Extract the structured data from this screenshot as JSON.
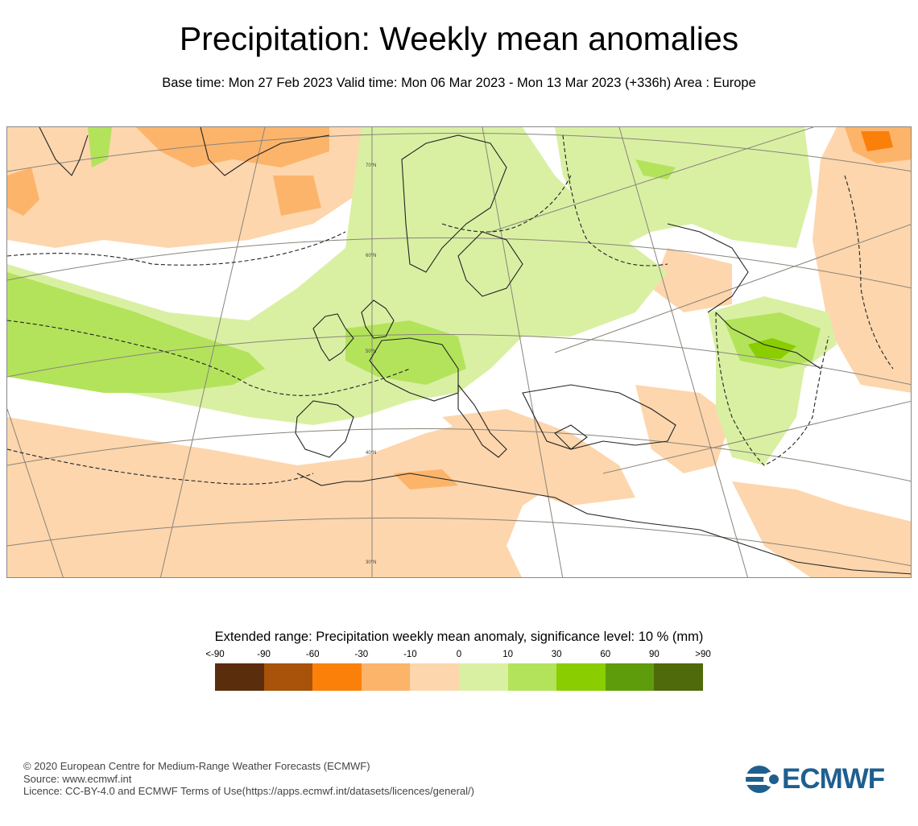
{
  "header": {
    "title": "Precipitation: Weekly mean anomalies",
    "subtitle": "Base time: Mon 27 Feb 2023 Valid time: Mon 06 Mar 2023 - Mon 13 Mar 2023 (+336h) Area : Europe"
  },
  "map": {
    "area": "Europe",
    "latitude_labels": [
      "70°N",
      "60°N",
      "50°N",
      "40°N",
      "30°N"
    ],
    "land_color": "#ffffff",
    "coastline_color": "#222222",
    "gridline_color": "#8a847a",
    "significance_contour": "dashed"
  },
  "legend": {
    "title": "Extended range: Precipitation weekly mean anomaly, significance level: 10 % (mm)",
    "ticks": [
      "<-90",
      "-90",
      "-60",
      "-30",
      "-10",
      "0",
      "10",
      "30",
      "60",
      "90",
      ">90"
    ],
    "colors": [
      "#5a2d0c",
      "#a8520a",
      "#fb8009",
      "#fcb46b",
      "#fdd6ad",
      "#d9f0a3",
      "#b3e35b",
      "#8acd00",
      "#5e9c0c",
      "#4f6a0a"
    ]
  },
  "footer": {
    "line1": "© 2020 European Centre for Medium-Range Weather Forecasts (ECMWF)",
    "line2": "Source: www.ecmwf.int",
    "line3": "Licence: CC-BY-4.0 and ECMWF Terms of Use(https://apps.ecmwf.int/datasets/licences/general/)"
  },
  "logo": {
    "text": "ECMWF",
    "color": "#1f5f8f"
  }
}
